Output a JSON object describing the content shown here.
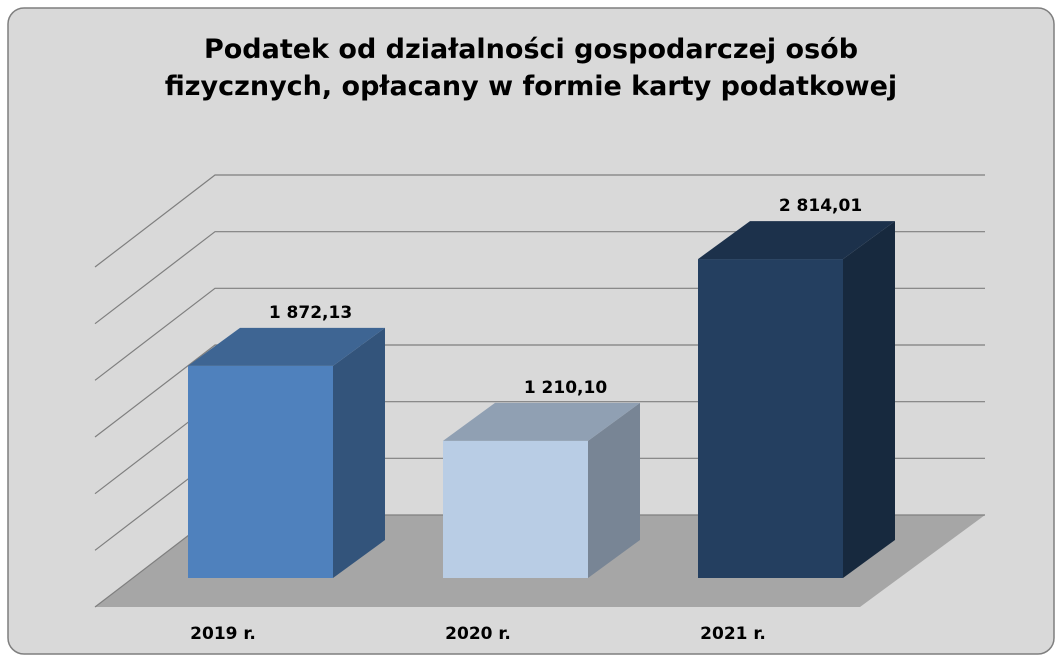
{
  "chart_data": {
    "type": "bar3d",
    "title": [
      "Podatek od działalności gospodarczej osób",
      "fizycznych, opłacany w formie karty podatkowej"
    ],
    "categories": [
      "2019 r.",
      "2020 r.",
      "2021 r."
    ],
    "values": [
      1872.13,
      1210.1,
      2814.01
    ],
    "value_labels": [
      "1 872,13",
      "1 210,10",
      "2 814,01"
    ],
    "colors": [
      "#4f81bd",
      "#b9cde5",
      "#243f60"
    ],
    "ylim": [
      0,
      3000
    ],
    "yticks": [
      0,
      500,
      1000,
      1500,
      2000,
      2500,
      3000
    ],
    "grid": true
  }
}
